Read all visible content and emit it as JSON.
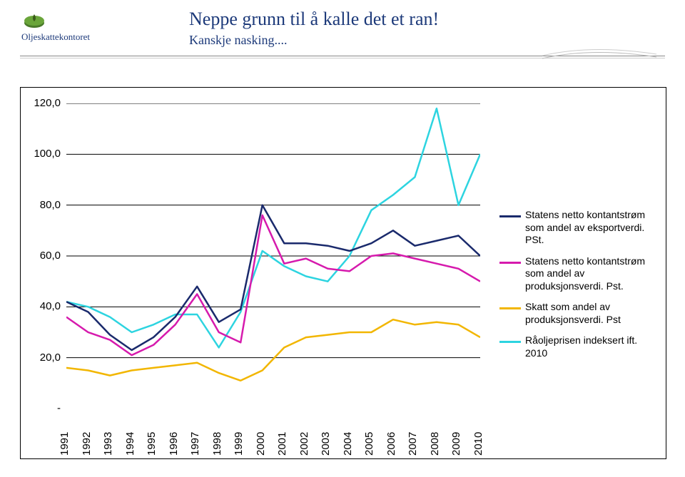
{
  "header": {
    "logo_text": "Oljeskattekontoret",
    "title1": "Neppe grunn til å kalle det et ran!",
    "title2": "Kanskje nasking...."
  },
  "chart": {
    "type": "line",
    "background_color": "#ffffff",
    "border_color": "#000000",
    "xlim": [
      1991,
      2010
    ],
    "ylim": [
      0,
      120
    ],
    "ytick_step": 20,
    "yticks": [
      "-",
      "20,0",
      "40,0",
      "60,0",
      "80,0",
      "100,0",
      "120,0"
    ],
    "grid_color": "#000000",
    "line_width": 2.5,
    "x_labels": [
      "1991",
      "1992",
      "1993",
      "1994",
      "1995",
      "1996",
      "1997",
      "1998",
      "1999",
      "2000",
      "2001",
      "2002",
      "2003",
      "2004",
      "2005",
      "2006",
      "2007",
      "2008",
      "2009",
      "2010"
    ],
    "series": [
      {
        "name": "eksportverdi",
        "label": "Statens netto kontantstrøm som andel av eksportverdi. PSt.",
        "color": "#1a2a6c",
        "values": [
          42,
          38,
          29,
          23,
          28,
          36,
          48,
          34,
          39,
          80,
          65,
          65,
          64,
          62,
          65,
          70,
          64,
          66,
          68,
          60
        ]
      },
      {
        "name": "produksjonsverdi",
        "label": "Statens netto kontantstrøm som andel av produksjonsverdi. Pst.",
        "color": "#d61aad",
        "values": [
          36,
          30,
          27,
          21,
          25,
          33,
          45,
          30,
          26,
          76,
          57,
          59,
          55,
          54,
          60,
          61,
          59,
          57,
          55,
          50
        ]
      },
      {
        "name": "skatt",
        "label": "Skatt som andel av produksjonsverdi. Pst",
        "color": "#f2b600",
        "values": [
          16,
          15,
          13,
          15,
          16,
          17,
          18,
          14,
          11,
          15,
          24,
          28,
          29,
          30,
          30,
          35,
          33,
          34,
          33,
          28
        ]
      },
      {
        "name": "raolje",
        "label": "Råoljeprisen indeksert ift. 2010",
        "color": "#2dd4e0",
        "values": [
          42,
          40,
          36,
          30,
          33,
          37,
          37,
          24,
          38,
          62,
          56,
          52,
          50,
          60,
          78,
          84,
          91,
          118,
          80,
          100
        ]
      }
    ]
  },
  "legend": {
    "fontsize": 14
  }
}
